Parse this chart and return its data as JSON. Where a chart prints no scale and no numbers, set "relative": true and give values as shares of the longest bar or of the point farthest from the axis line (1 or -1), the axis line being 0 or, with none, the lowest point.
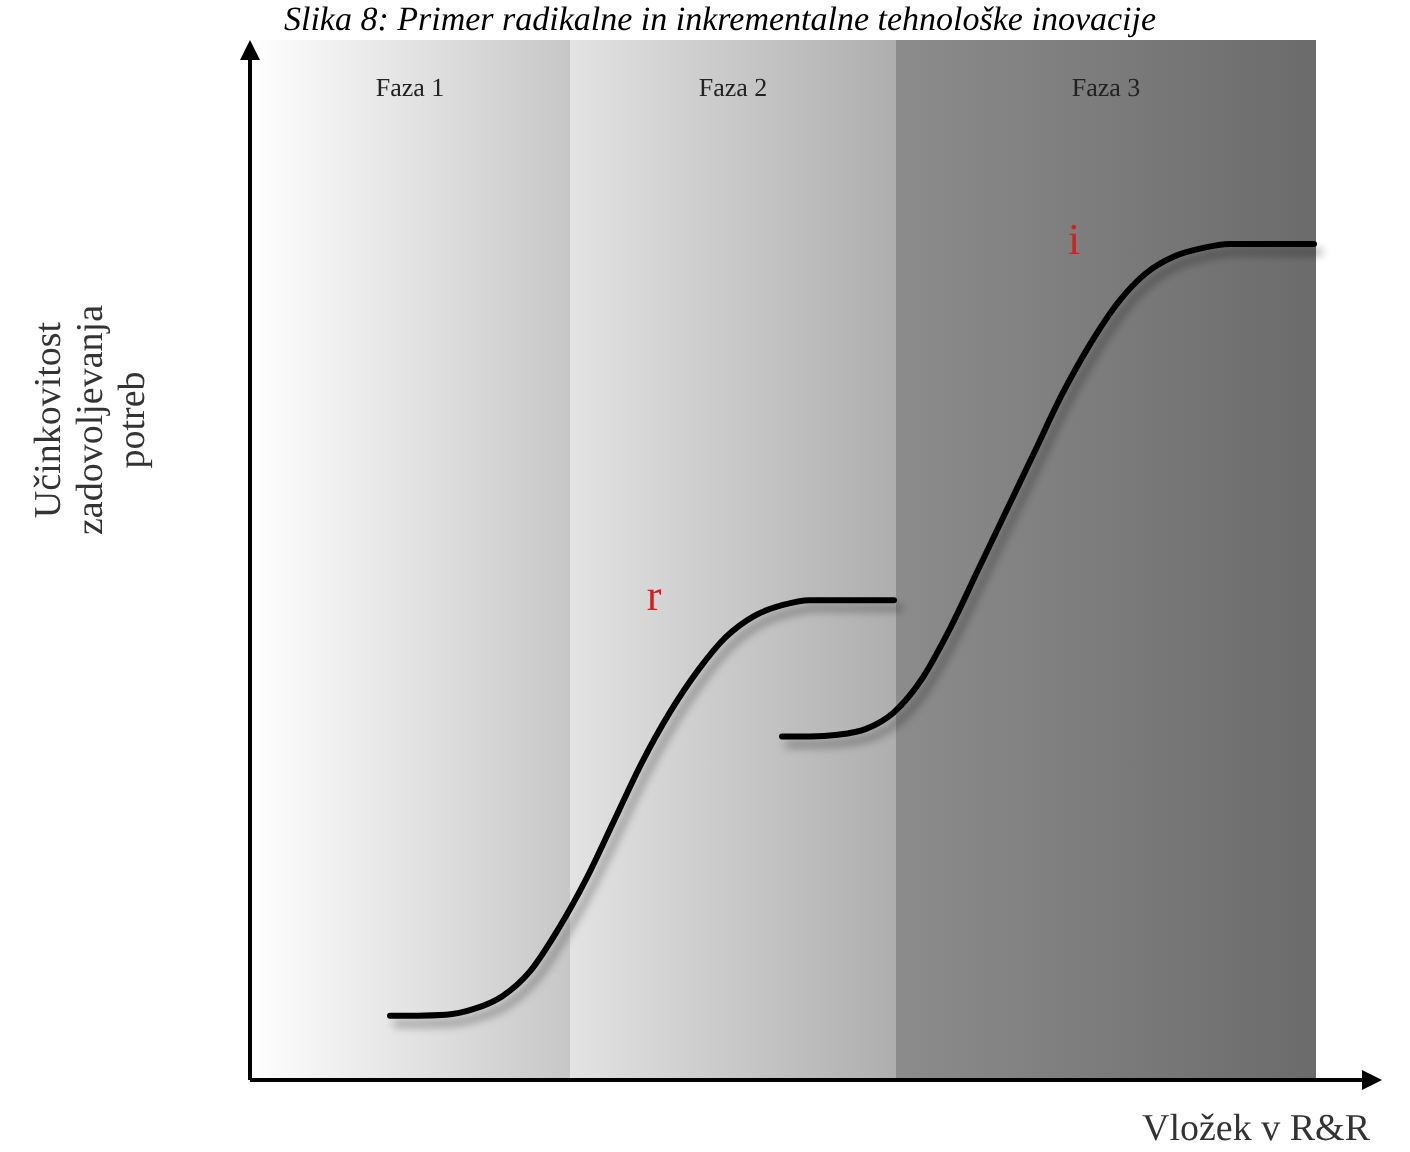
{
  "chart_data": {
    "type": "line",
    "title": "Slika 8: Primer radikalne in inkrementalne tehnološke inovacije",
    "xlabel": "Vložek v R&R",
    "ylabel": "Učinkovitost\nzadovoljevanja\npotreb",
    "relative": true,
    "categories": [
      null,
      null,
      null,
      null,
      null,
      null,
      null,
      null,
      null,
      null,
      null,
      null,
      null,
      null,
      null,
      null,
      null,
      null,
      null,
      null,
      null,
      null,
      null,
      null,
      null,
      null,
      null,
      null,
      null,
      null,
      null,
      null,
      null,
      null,
      null,
      null,
      null,
      null,
      null,
      null,
      null
    ],
    "series": [
      {
        "name": "r",
        "color": "#000000",
        "values": [
          null,
          null,
          null,
          null,
          null,
          0.077,
          0.077,
          0.078,
          0.085,
          0.1,
          0.13,
          0.18,
          0.24,
          0.31,
          0.38,
          0.44,
          0.49,
          0.53,
          0.555,
          0.568,
          0.574,
          0.574,
          0.574,
          0.574,
          null,
          null,
          null,
          null,
          null,
          null,
          null,
          null,
          null,
          null,
          null,
          null,
          null,
          null,
          null,
          null,
          null
        ]
      },
      {
        "name": "i",
        "color": "#000000",
        "values": [
          null,
          null,
          null,
          null,
          null,
          null,
          null,
          null,
          null,
          null,
          null,
          null,
          null,
          null,
          null,
          null,
          null,
          null,
          null,
          0.411,
          0.411,
          0.413,
          0.42,
          0.44,
          0.48,
          0.54,
          0.61,
          0.68,
          0.75,
          0.82,
          0.88,
          0.93,
          0.965,
          0.985,
          0.995,
          1,
          1,
          1,
          1,
          null,
          null
        ]
      }
    ],
    "annotations": [
      "Faza 1",
      "Faza 2",
      "Faza 3"
    ]
  }
}
